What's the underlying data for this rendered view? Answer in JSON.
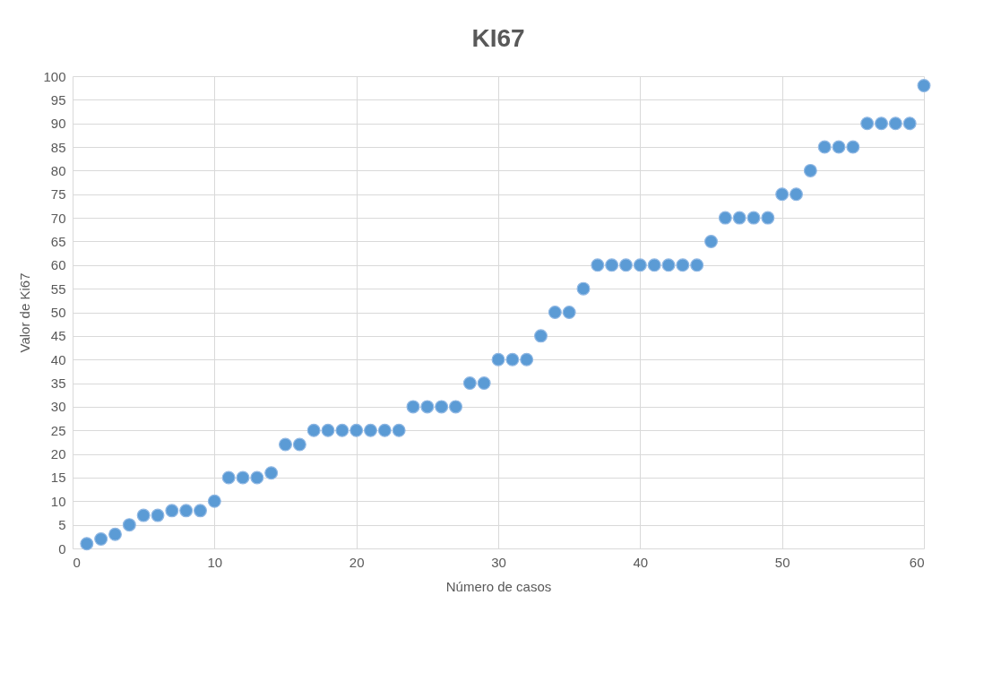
{
  "chart_data": {
    "type": "scatter",
    "title": "KI67",
    "xlabel": "Número de casos",
    "ylabel": "Valor de Ki67",
    "x": [
      1,
      2,
      3,
      4,
      5,
      6,
      7,
      8,
      9,
      10,
      11,
      12,
      13,
      14,
      15,
      16,
      17,
      18,
      19,
      20,
      21,
      22,
      23,
      24,
      25,
      26,
      27,
      28,
      29,
      30,
      31,
      32,
      33,
      34,
      35,
      36,
      37,
      38,
      39,
      40,
      41,
      42,
      43,
      44,
      45,
      46,
      47,
      48,
      49,
      50,
      51,
      52,
      53,
      54,
      55,
      56,
      57,
      58,
      59,
      60
    ],
    "series": [
      {
        "color": "#5b9bd5",
        "values": [
          1,
          2,
          3,
          5,
          7,
          7,
          8,
          8,
          8,
          10,
          15,
          15,
          15,
          16,
          22,
          22,
          25,
          25,
          25,
          25,
          25,
          25,
          25,
          30,
          30,
          30,
          30,
          35,
          35,
          40,
          40,
          40,
          45,
          50,
          50,
          55,
          60,
          60,
          60,
          60,
          60,
          60,
          60,
          60,
          65,
          70,
          70,
          70,
          70,
          75,
          75,
          80,
          85,
          85,
          85,
          90,
          90,
          90,
          90,
          98
        ]
      }
    ],
    "xlim": [
      0,
      60
    ],
    "xticks": [
      0,
      10,
      20,
      30,
      40,
      50,
      60
    ],
    "ylim": [
      0,
      100
    ],
    "yticks": [
      0,
      5,
      10,
      15,
      20,
      25,
      30,
      35,
      40,
      45,
      50,
      55,
      60,
      65,
      70,
      75,
      80,
      85,
      90,
      95,
      100
    ],
    "grid": true,
    "marker": "circle"
  }
}
